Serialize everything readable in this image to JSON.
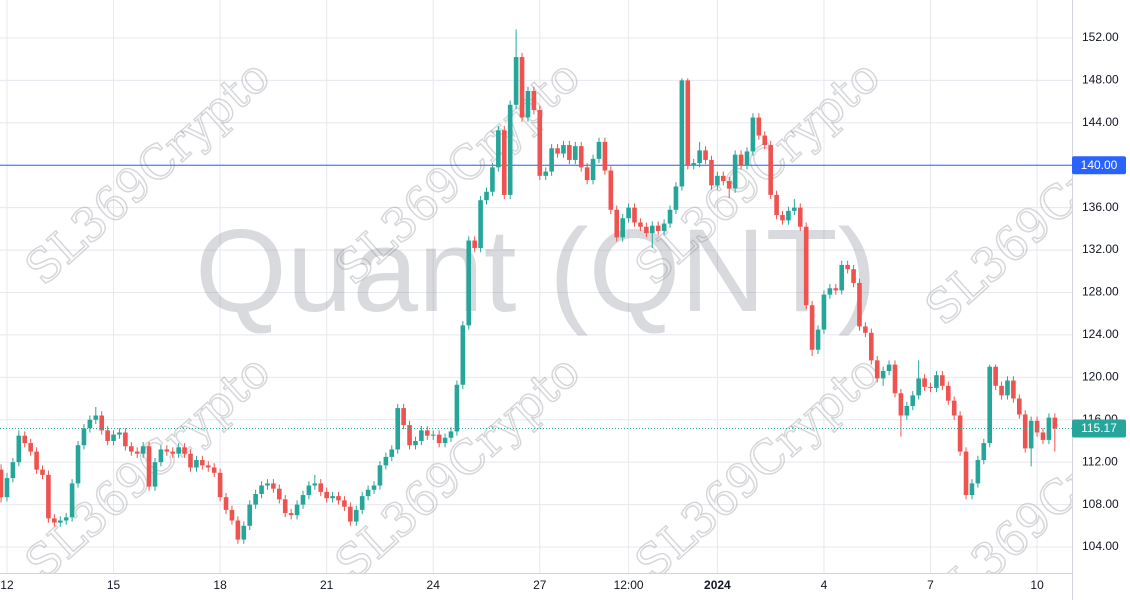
{
  "chart_data": {
    "type": "candlestick",
    "title": "Quant (QNT)",
    "watermark": "SL369Crypto",
    "up_color": "#26a69a",
    "down_color": "#ef5350",
    "grid": true,
    "xlim": [
      -0.18,
      180.9
    ],
    "xticks": [
      {
        "value": 1,
        "label": "12"
      },
      {
        "value": 19,
        "label": "15"
      },
      {
        "value": 37,
        "label": "18"
      },
      {
        "value": 55,
        "label": "21"
      },
      {
        "value": 73,
        "label": "24"
      },
      {
        "value": 91,
        "label": "27"
      },
      {
        "value": 106,
        "label": "12:00"
      },
      {
        "value": 121,
        "label": "2024",
        "bold": true
      },
      {
        "value": 139,
        "label": "4"
      },
      {
        "value": 157,
        "label": "7"
      },
      {
        "value": 175,
        "label": "10"
      }
    ],
    "ylim": [
      101.55,
      155.58
    ],
    "yticks": [
      {
        "value": 104,
        "label": "104.00"
      },
      {
        "value": 108,
        "label": "108.00"
      },
      {
        "value": 112,
        "label": "112.00"
      },
      {
        "value": 116,
        "label": "116.00"
      },
      {
        "value": 120,
        "label": "120.00"
      },
      {
        "value": 124,
        "label": "124.00"
      },
      {
        "value": 128,
        "label": "128.00"
      },
      {
        "value": 132,
        "label": "132.00"
      },
      {
        "value": 136,
        "label": "136.00"
      },
      {
        "value": 140,
        "label": "140.00"
      },
      {
        "value": 144,
        "label": "144.00"
      },
      {
        "value": 148,
        "label": "148.00"
      },
      {
        "value": 152,
        "label": "152.00"
      }
    ],
    "hline": {
      "value": 140,
      "label": "140.00",
      "color": "#2962ff"
    },
    "last_price": {
      "value": 115.17,
      "label": "115.17",
      "color": "#26a69a"
    },
    "series": {
      "open": [
        111.3,
        108.7,
        110.5,
        112,
        114.5,
        113.8,
        113,
        111.3,
        110.8,
        106.7,
        106.3,
        106.5,
        106.8,
        110,
        113.6,
        115.2,
        116,
        116.4,
        115,
        114,
        114.6,
        114.8,
        113.5,
        113,
        112.8,
        113.5,
        109.7,
        112,
        113.2,
        113,
        112.8,
        113.4,
        112.8,
        111.5,
        112.2,
        111.7,
        111.5,
        111,
        108.7,
        107.5,
        106.5,
        104.7,
        106,
        108,
        109,
        109.8,
        110,
        109.5,
        108.5,
        107.2,
        107,
        108,
        108.9,
        109.8,
        110,
        109.2,
        108.6,
        108.8,
        108.4,
        107.8,
        106.4,
        107.5,
        108.8,
        109.4,
        109.8,
        111.7,
        112.5,
        113.2,
        117.1,
        115.5,
        113.6,
        114,
        115,
        114.5,
        114.6,
        113.8,
        114.3,
        114.9,
        119.3,
        124.9,
        132.9,
        132.2,
        136.7,
        137.5,
        139.8,
        143.3,
        137.2,
        145.7,
        150.2,
        144.5,
        147,
        145.2,
        139,
        139.4,
        141.6,
        141.1,
        141.9,
        140.5,
        141.8,
        139.8,
        138.6,
        140.6,
        142.2,
        139.5,
        135.8,
        133.2,
        135,
        136,
        134.6,
        134.2,
        133.6,
        134.3,
        133.8,
        134.5,
        135.8,
        138,
        148,
        140,
        140.2,
        141.4,
        140.5,
        138.1,
        139,
        138.5,
        137.8,
        141,
        140,
        141.3,
        144.5,
        142.8,
        141.9,
        137.2,
        135.3,
        134.8,
        135.7,
        136,
        134.2,
        126.8,
        122.6,
        124.5,
        127.8,
        128.4,
        128.2,
        130.6,
        130.2,
        128.9,
        124.8,
        124.2,
        121.6,
        119.9,
        120.6,
        121.2,
        118.5,
        116.4,
        117.3,
        118.3,
        119.9,
        119.1,
        119,
        120.2,
        119.2,
        117.8,
        116.4,
        113,
        108.9,
        110,
        112.2,
        113.8,
        121,
        119.2,
        118.3,
        119.7,
        118,
        116.5,
        113.3,
        115.9,
        114.8,
        114.1,
        116.2
      ],
      "high": [
        111.8,
        111,
        112.4,
        115,
        114.9,
        114.2,
        113.4,
        111.7,
        111.2,
        107.1,
        106.9,
        107.2,
        110.4,
        114,
        115.6,
        116.4,
        117.2,
        116.8,
        115.4,
        115,
        115.2,
        115.2,
        113.9,
        113.4,
        113.9,
        113.9,
        112.4,
        113.6,
        113.6,
        113.4,
        113.8,
        113.8,
        113.2,
        112.6,
        112.6,
        112.1,
        111.9,
        111.4,
        109.1,
        107.9,
        106.9,
        106.4,
        108.4,
        109.4,
        110.2,
        110.4,
        110.4,
        109.9,
        108.9,
        107.6,
        108.4,
        109.3,
        110.2,
        110.8,
        110.4,
        109.6,
        109.2,
        109.2,
        108.8,
        108.2,
        107.9,
        109.2,
        109.8,
        110.2,
        112.1,
        112.9,
        113.6,
        117.5,
        117.5,
        115.9,
        114.4,
        115.4,
        115.4,
        115,
        115,
        114.7,
        115.3,
        119.7,
        125.3,
        133.3,
        133.3,
        137.1,
        137.9,
        140.2,
        143.7,
        143.7,
        146.1,
        152.8,
        150.6,
        147.4,
        147.4,
        145.6,
        139.8,
        142,
        142,
        142.3,
        142.3,
        142.2,
        142.2,
        140.2,
        141,
        142.6,
        142.6,
        139.9,
        136.2,
        135.4,
        136.4,
        136.4,
        135,
        134.6,
        134.7,
        134.7,
        134.9,
        136.2,
        138.4,
        148.2,
        148.2,
        140.6,
        142.2,
        141.8,
        140.9,
        139.4,
        139.4,
        138.9,
        141.4,
        141.4,
        141.7,
        144.9,
        144.9,
        143.2,
        142.3,
        137.6,
        135.7,
        136.1,
        136.8,
        136.4,
        134.6,
        127.2,
        124.9,
        128.2,
        128.8,
        128.8,
        131,
        131,
        130.6,
        129.3,
        125.2,
        124.6,
        122,
        121,
        121.6,
        121.6,
        118.9,
        117.7,
        118.7,
        121.6,
        120.3,
        119.5,
        120.6,
        120.6,
        119.6,
        118.2,
        116.8,
        113.4,
        110.4,
        112.6,
        114.2,
        121.2,
        121.2,
        119.6,
        120.1,
        120.1,
        118.4,
        116.9,
        116.3,
        116.3,
        115.2,
        116.6,
        116.6
      ],
      "low": [
        108.2,
        108.3,
        110.1,
        111.6,
        113.4,
        112.6,
        110.9,
        110.4,
        106.3,
        105.9,
        105.9,
        106.1,
        106.4,
        109.6,
        113.2,
        114.8,
        115.6,
        114.6,
        113.6,
        113.6,
        114.2,
        113.1,
        112.6,
        112.4,
        112.4,
        109.3,
        109.3,
        111.6,
        112.6,
        112.4,
        112.4,
        112.4,
        111.1,
        111.1,
        111.3,
        111.1,
        110.6,
        108.3,
        107.1,
        106.1,
        104.3,
        104.3,
        105.6,
        107.6,
        108.6,
        109.4,
        109.1,
        108.1,
        106.8,
        106.6,
        106.6,
        107.6,
        108.5,
        109.4,
        108.8,
        108.2,
        108.2,
        108,
        107.4,
        106,
        106,
        107.1,
        108.4,
        109,
        109.4,
        111.3,
        112.1,
        112.8,
        115.1,
        113.2,
        113.2,
        113.6,
        114.1,
        114.1,
        113.4,
        113.4,
        113.9,
        114.5,
        118.9,
        124.5,
        131.8,
        131.8,
        136.3,
        137.1,
        139.4,
        136.8,
        136.8,
        145.3,
        144.1,
        144.1,
        144.8,
        138.6,
        138.6,
        139,
        140.7,
        140.7,
        140.1,
        140.1,
        139.4,
        138.2,
        138.2,
        140.2,
        139.1,
        135.4,
        132.8,
        132.8,
        134.6,
        134.2,
        133.8,
        133.2,
        132.2,
        133.4,
        133.4,
        134.1,
        135.4,
        137.6,
        139.6,
        139.6,
        139.8,
        140.1,
        137.7,
        137.7,
        138.1,
        136.9,
        137.4,
        139.6,
        139.6,
        140.9,
        142.4,
        141.5,
        136.8,
        134.9,
        134.4,
        134.4,
        135.3,
        133.8,
        126.4,
        122,
        122.2,
        124.1,
        127.4,
        127.8,
        127.8,
        129.8,
        128.5,
        124.4,
        123.8,
        121.2,
        119.5,
        119.2,
        120.2,
        118.1,
        114.4,
        116,
        116.9,
        117.9,
        118.7,
        118.6,
        118.6,
        118.8,
        117.4,
        116,
        112.6,
        108.5,
        108.5,
        109.6,
        111.8,
        113.4,
        118.8,
        117.9,
        117.9,
        117.6,
        116.1,
        112.9,
        111.6,
        114.4,
        113.7,
        113.7,
        113
      ],
      "close": [
        108.7,
        110.5,
        112,
        114.5,
        113.8,
        113,
        111.3,
        110.8,
        106.7,
        106.3,
        106.5,
        106.8,
        110,
        113.6,
        115.2,
        116,
        116.4,
        115,
        114,
        114.6,
        114.8,
        113.5,
        113,
        112.8,
        113.5,
        109.7,
        112,
        113.2,
        113,
        112.8,
        113.4,
        112.8,
        111.5,
        112.2,
        111.7,
        111.5,
        111,
        108.7,
        107.5,
        106.5,
        104.7,
        106,
        108,
        109,
        109.8,
        110,
        109.5,
        108.5,
        107.2,
        107,
        108,
        108.9,
        109.8,
        110,
        109.2,
        108.6,
        108.8,
        108.4,
        107.8,
        106.4,
        107.5,
        108.8,
        109.4,
        109.8,
        111.7,
        112.5,
        113.2,
        117.1,
        115.5,
        113.6,
        114,
        115,
        114.5,
        114.6,
        113.8,
        114.3,
        114.9,
        119.3,
        124.9,
        132.9,
        132.2,
        136.7,
        137.5,
        139.8,
        143.3,
        137.2,
        145.7,
        150.2,
        144.5,
        147,
        145.2,
        139,
        139.4,
        141.6,
        141.1,
        141.9,
        140.5,
        141.8,
        139.8,
        138.6,
        140.6,
        142.2,
        139.5,
        135.8,
        133.2,
        135,
        136,
        134.6,
        134.2,
        133.6,
        134.3,
        133.8,
        134.5,
        135.8,
        138,
        148,
        140,
        140.2,
        141.4,
        140.5,
        138.1,
        139,
        138.5,
        137.8,
        141,
        140,
        141.3,
        144.5,
        142.8,
        141.9,
        137.2,
        135.3,
        134.8,
        135.7,
        136,
        134.2,
        126.8,
        122.6,
        124.5,
        127.8,
        128.4,
        128.2,
        130.6,
        130.2,
        128.9,
        124.8,
        124.2,
        121.6,
        119.9,
        120.6,
        121.2,
        118.5,
        116.4,
        117.3,
        118.3,
        119.9,
        119.1,
        119,
        120.2,
        119.2,
        117.8,
        116.4,
        113,
        108.9,
        110,
        112.2,
        113.8,
        121,
        119.2,
        118.3,
        119.7,
        118,
        116.5,
        113.3,
        115.9,
        114.8,
        114.1,
        116.2,
        115.17
      ]
    }
  }
}
